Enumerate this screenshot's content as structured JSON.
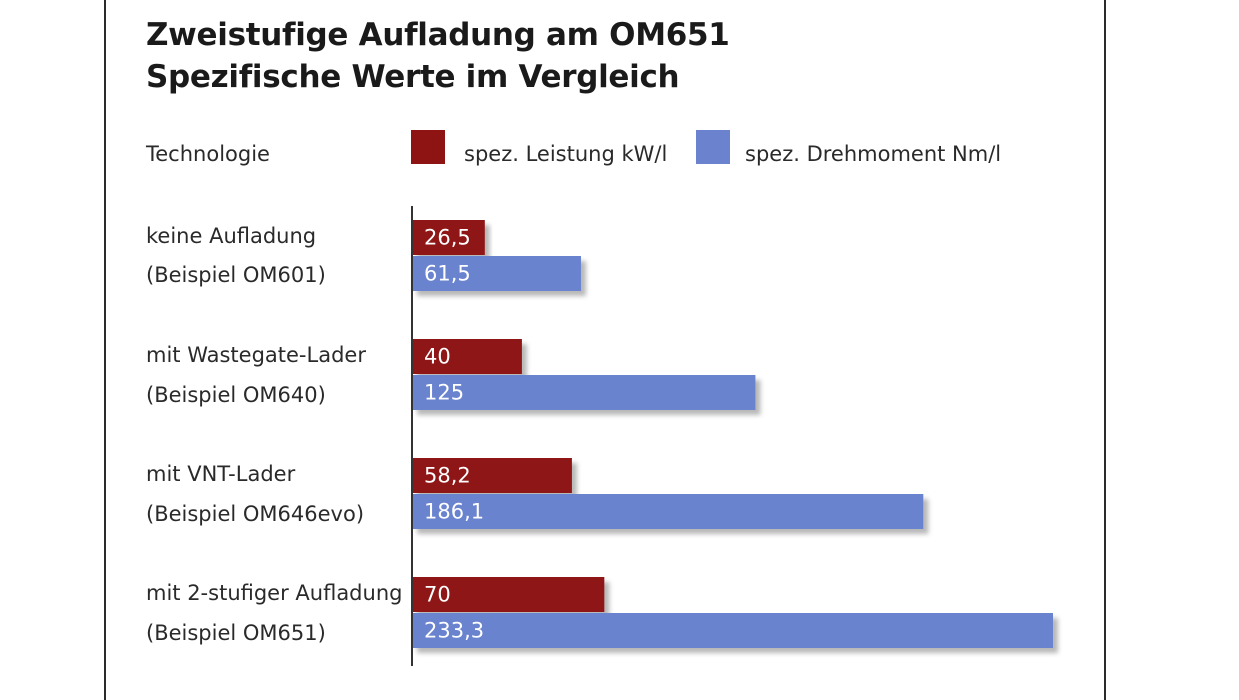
{
  "title_line1": "Zweistufige Aufladung am OM651",
  "title_line2": "Spezifische Werte im Vergleich",
  "header_label": "Technologie",
  "colors": {
    "leistung": "#8e1414",
    "drehmoment": "#6b83cf"
  },
  "chart_data": {
    "type": "bar",
    "orientation": "horizontal",
    "title": "Zweistufige Aufladung am OM651 — Spezifische Werte im Vergleich",
    "categories": [
      {
        "line1": "keine Aufladung",
        "line2": "(Beispiel OM601)"
      },
      {
        "line1": "mit Wastegate-Lader",
        "line2": "(Beispiel OM640)"
      },
      {
        "line1": "mit VNT-Lader",
        "line2": "(Beispiel OM646evo)"
      },
      {
        "line1": "mit 2-stufiger Aufladung",
        "line2": "(Beispiel OM651)"
      }
    ],
    "series": [
      {
        "name": "spez. Leistung kW/l",
        "values": [
          26.5,
          40,
          58.2,
          70
        ],
        "labels": [
          "26,5",
          "40",
          "58,2",
          "70"
        ]
      },
      {
        "name": "spez. Drehmoment Nm/l",
        "values": [
          61.5,
          125,
          186.1,
          233.3
        ],
        "labels": [
          "61,5",
          "125",
          "186,1",
          "233,3"
        ]
      }
    ],
    "xlim": [
      0,
      233.3
    ],
    "legend_position": "top",
    "data_labels": "inside-bar-left"
  }
}
